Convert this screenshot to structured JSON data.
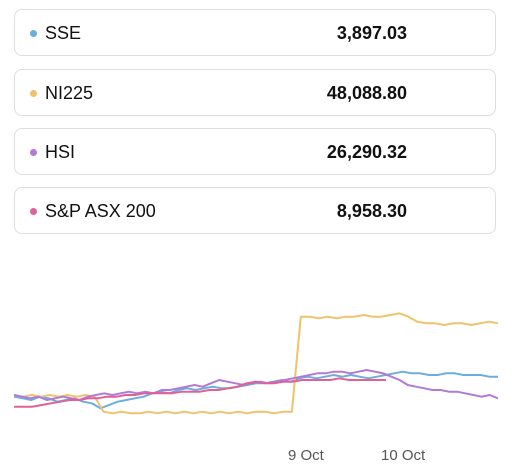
{
  "colors": {
    "sse": "#6aaedb",
    "ni225": "#f0c26a",
    "hsi": "#b279d8",
    "asx": "#e0609a"
  },
  "indices": [
    {
      "name": "SSE",
      "value": "3,897.03"
    },
    {
      "name": "NI225",
      "value": "48,088.80"
    },
    {
      "name": "HSI",
      "value": "26,290.32"
    },
    {
      "name": "S&P ASX 200",
      "value": "8,958.30"
    }
  ],
  "chart_data": {
    "type": "line",
    "x_tick_labels": [
      "9 Oct",
      "10 Oct"
    ],
    "series": [
      {
        "name": "SSE",
        "color": "#6aaedb",
        "values": [
          -0.2,
          -0.3,
          -0.4,
          -0.2,
          -0.3,
          -0.5,
          -0.4,
          -0.3,
          -0.5,
          -0.6,
          -0.9,
          -0.7,
          -0.5,
          -0.4,
          -0.3,
          -0.2,
          0.0,
          0.1,
          0.0,
          0.2,
          0.3,
          0.2,
          0.3,
          0.4,
          0.3,
          0.3,
          0.4,
          0.5,
          0.6,
          0.6,
          0.7,
          0.8,
          0.7,
          0.9,
          1.0,
          0.9,
          1.0,
          1.1,
          1.0,
          1.1,
          1.0,
          0.9,
          1.0,
          1.1,
          1.2,
          1.3,
          1.2,
          1.2,
          1.1,
          1.1,
          1.2,
          1.2,
          1.1,
          1.1,
          1.1,
          1.0,
          1.0
        ]
      },
      {
        "name": "NI225",
        "color": "#f0c26a",
        "values": [
          -0.1,
          -0.2,
          -0.1,
          -0.2,
          -0.1,
          -0.2,
          -0.1,
          -0.2,
          -0.1,
          -0.2,
          -1.1,
          -1.2,
          -1.1,
          -1.2,
          -1.2,
          -1.1,
          -1.2,
          -1.1,
          -1.2,
          -1.1,
          -1.2,
          -1.1,
          -1.2,
          -1.1,
          -1.2,
          -1.1,
          -1.2,
          -1.1,
          -1.1,
          -1.2,
          -1.1,
          -1.1,
          4.6,
          4.6,
          4.5,
          4.6,
          4.5,
          4.6,
          4.6,
          4.7,
          4.6,
          4.6,
          4.7,
          4.8,
          4.6,
          4.3,
          4.2,
          4.2,
          4.1,
          4.2,
          4.2,
          4.1,
          4.2,
          4.3,
          4.2
        ]
      },
      {
        "name": "HSI",
        "color": "#b279d8",
        "values": [
          -0.1,
          -0.2,
          -0.3,
          -0.2,
          -0.4,
          -0.3,
          -0.2,
          -0.3,
          -0.4,
          -0.2,
          -0.1,
          0.0,
          -0.1,
          0.0,
          0.1,
          0.0,
          0.1,
          0.0,
          0.2,
          0.2,
          0.3,
          0.4,
          0.5,
          0.4,
          0.6,
          0.8,
          0.7,
          0.6,
          0.5,
          0.6,
          0.7,
          0.6,
          0.7,
          0.8,
          0.9,
          1.0,
          1.1,
          1.2,
          1.2,
          1.3,
          1.3,
          1.2,
          1.3,
          1.4,
          1.3,
          1.2,
          1.0,
          0.8,
          0.5,
          0.4,
          0.3,
          0.2,
          0.2,
          0.1,
          0.1,
          0.0,
          -0.1,
          -0.2,
          -0.1,
          -0.3
        ]
      },
      {
        "name": "S&P ASX 200",
        "color": "#e0609a",
        "values": [
          -0.8,
          -0.8,
          -0.8,
          -0.7,
          -0.6,
          -0.5,
          -0.4,
          -0.4,
          -0.3,
          -0.3,
          -0.2,
          -0.2,
          -0.1,
          -0.1,
          0.0,
          0.0,
          0.0,
          0.0,
          0.1,
          0.1,
          0.1,
          0.2,
          0.2,
          0.3,
          0.4,
          0.6,
          0.7,
          0.6,
          0.6,
          0.7,
          0.7,
          0.8,
          0.8,
          0.8,
          0.8,
          0.9,
          0.8,
          0.8,
          0.8,
          0.8,
          0.8
        ]
      }
    ]
  }
}
